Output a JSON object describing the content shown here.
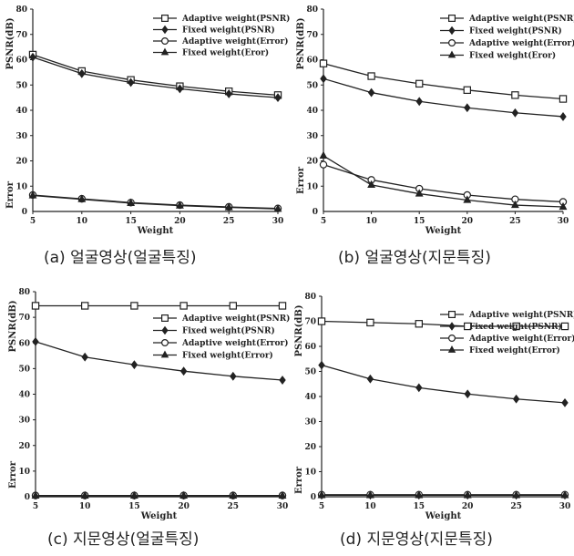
{
  "chart_data": [
    {
      "type": "line",
      "panel": "a",
      "caption": "(a) 얼굴영상(얼굴특징)",
      "ylabel": "PSNR(dB)",
      "ylabel2": "Error",
      "xlabel": "Weight",
      "ylim": [
        0,
        80
      ],
      "xlim": [
        5,
        30
      ],
      "x": [
        5,
        10,
        15,
        20,
        25,
        30
      ],
      "yticks": [
        10,
        20,
        30,
        40,
        50,
        60,
        70,
        80
      ],
      "legend_position": "top-right",
      "series": [
        {
          "name": "Adaptive weight(PSNR)",
          "marker": "square",
          "values": [
            62,
            55.5,
            52,
            49.5,
            47.5,
            46
          ]
        },
        {
          "name": "Fixed weight(PSNR)",
          "marker": "diamond",
          "values": [
            61,
            54.5,
            51,
            48.5,
            46.5,
            45
          ]
        },
        {
          "name": "Adaptive weight(Error)",
          "marker": "circle",
          "values": [
            6.5,
            5,
            3.5,
            2.5,
            1.8,
            1.2
          ]
        },
        {
          "name": "Fixed weight(Eror)",
          "marker": "triangle",
          "values": [
            6.3,
            4.8,
            3.3,
            2.3,
            1.6,
            1.0
          ]
        }
      ]
    },
    {
      "type": "line",
      "panel": "b",
      "caption": "(b) 얼굴영상(지문특징)",
      "ylabel": "PSNR(dB)",
      "ylabel2": "Error",
      "xlabel": "Weight",
      "ylim": [
        0,
        80
      ],
      "xlim": [
        5,
        30
      ],
      "x": [
        5,
        10,
        15,
        20,
        25,
        30
      ],
      "yticks": [
        10,
        20,
        30,
        40,
        50,
        60,
        70,
        80
      ],
      "legend_position": "top-right",
      "series": [
        {
          "name": "Adaptive weight(PSNR)",
          "marker": "square",
          "values": [
            58.5,
            53.5,
            50.5,
            48,
            46,
            44.5
          ]
        },
        {
          "name": "Fixed weight(PSNR)",
          "marker": "diamond",
          "values": [
            52.5,
            47,
            43.5,
            41,
            39,
            37.5
          ]
        },
        {
          "name": "Adaptive weight(Error)",
          "marker": "circle",
          "values": [
            18.5,
            12.5,
            9,
            6.5,
            4.8,
            3.8
          ]
        },
        {
          "name": "Fixed weight(Eror)",
          "marker": "triangle",
          "values": [
            22,
            10.5,
            7,
            4.5,
            2.5,
            1.8
          ]
        }
      ]
    },
    {
      "type": "line",
      "panel": "c",
      "caption": "(c) 지문영상(얼굴특징)",
      "ylabel": "PSNR(dB)",
      "ylabel2": "Error",
      "xlabel": "Weight",
      "ylim": [
        0,
        80
      ],
      "xlim": [
        5,
        30
      ],
      "x": [
        5,
        10,
        15,
        20,
        25,
        30
      ],
      "yticks": [
        10,
        20,
        30,
        40,
        50,
        60,
        70,
        80
      ],
      "legend_position": "right",
      "series": [
        {
          "name": "Adaptive weight(PSNR)",
          "marker": "square",
          "values": [
            74.5,
            74.5,
            74.5,
            74.5,
            74.5,
            74.5
          ]
        },
        {
          "name": "Fixed weight(PSNR)",
          "marker": "diamond",
          "values": [
            60.5,
            54.5,
            51.5,
            49,
            47,
            45.5
          ]
        },
        {
          "name": "Adaptive weight(Error)",
          "marker": "circle",
          "values": [
            0.5,
            0.5,
            0.5,
            0.5,
            0.5,
            0.5
          ]
        },
        {
          "name": "Fixed weight(Error)",
          "marker": "triangle",
          "values": [
            0.4,
            0.4,
            0.4,
            0.4,
            0.4,
            0.4
          ]
        }
      ]
    },
    {
      "type": "line",
      "panel": "d",
      "caption": "(d) 지문영상(지문특징)",
      "ylabel": "PSNR(dB)",
      "ylabel2": "Error",
      "xlabel": "Weight",
      "ylim": [
        0,
        80
      ],
      "xlim": [
        5,
        30
      ],
      "x": [
        5,
        10,
        15,
        20,
        25,
        30
      ],
      "yticks": [
        10,
        20,
        30,
        40,
        50,
        60,
        70,
        80
      ],
      "legend_position": "top-right",
      "series": [
        {
          "name": "Adaptive weight(PSNR)",
          "marker": "square",
          "values": [
            70,
            69.5,
            69,
            68,
            68,
            68
          ]
        },
        {
          "name": "Fixed weight(PSNR)",
          "marker": "diamond",
          "values": [
            52.5,
            47,
            43.5,
            41,
            39,
            37.5
          ]
        },
        {
          "name": "Adaptive weight(Error)",
          "marker": "circle",
          "values": [
            0.8,
            0.8,
            0.8,
            0.8,
            0.8,
            0.8
          ]
        },
        {
          "name": "Fixed weight(Error)",
          "marker": "triangle",
          "values": [
            0.6,
            0.6,
            0.6,
            0.6,
            0.6,
            0.6
          ]
        }
      ]
    }
  ]
}
